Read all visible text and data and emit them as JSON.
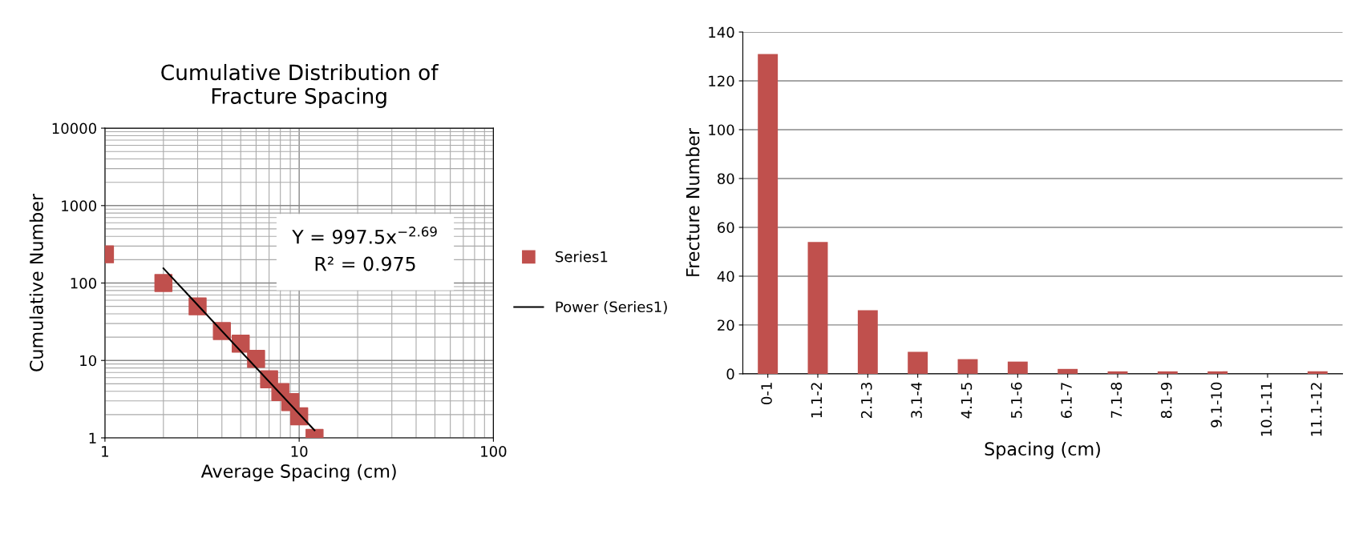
{
  "chart_data": [
    {
      "type": "scatter",
      "title": "Cumulative Distribution of\nFracture Spacing",
      "xlabel": "Average Spacing (cm)",
      "ylabel": "Cumulative Number",
      "log": "xy",
      "xlim": [
        1,
        100
      ],
      "xticks": [
        1,
        10,
        100
      ],
      "ylim": [
        1,
        10000
      ],
      "yticks": [
        1,
        10,
        100,
        1000,
        10000
      ],
      "grid": true,
      "legend": "right",
      "marker": "square",
      "series": [
        {
          "name": "Series1",
          "color": "#c0504d",
          "x": [
            1,
            2,
            3,
            4,
            5,
            6,
            7,
            8,
            9,
            10,
            12
          ],
          "values": [
            235,
            100,
            50,
            24,
            16.5,
            10.5,
            5.7,
            3.9,
            2.9,
            1.9,
            1
          ]
        },
        {
          "name": "Power (Series1)",
          "type": "line",
          "color": "#000000",
          "marker": "none",
          "x": [
            2,
            12
          ],
          "values": [
            155,
            1.25
          ]
        }
      ],
      "annotations": [
        "Y = 997.5x$^{−2.69}$\nR² = 0.975"
      ]
    },
    {
      "type": "bar",
      "xlabel": "Spacing (cm)",
      "ylabel": "Frecture Number",
      "color": "#c0504d",
      "ylim": [
        0,
        140
      ],
      "yticks": [
        0,
        20,
        40,
        60,
        80,
        100,
        120,
        140
      ],
      "grid": "y",
      "categories": [
        "0-1",
        "1.1-2",
        "2.1-3",
        "3.1-4",
        "4.1-5",
        "5.1-6",
        "6.1-7",
        "7.1-8",
        "8.1-9",
        "9.1-10",
        "10.1-11",
        "11.1-12"
      ],
      "values": [
        131,
        54,
        26,
        9,
        6,
        5,
        2,
        1,
        1,
        1,
        0,
        1
      ]
    }
  ]
}
